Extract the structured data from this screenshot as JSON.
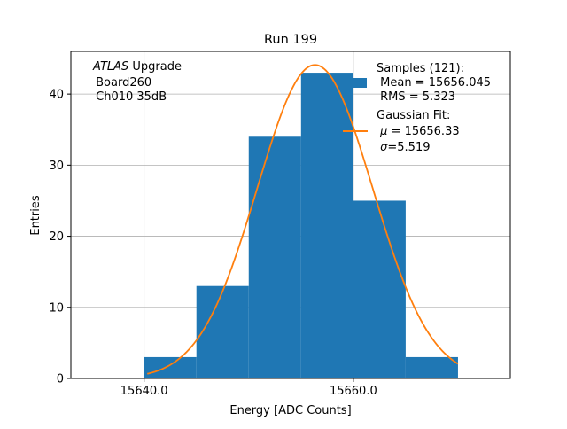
{
  "chart_data": {
    "type": "bar",
    "title": "Run 199",
    "xlabel": "Energy [ADC Counts]",
    "ylabel": "Entries",
    "xlim": [
      15633,
      15675
    ],
    "ylim": [
      0,
      46
    ],
    "grid": true,
    "xticks": [
      15640,
      15660
    ],
    "xtick_labels": [
      "15640.0",
      "15660.0"
    ],
    "yticks": [
      0,
      10,
      20,
      30,
      40
    ],
    "ytick_labels": [
      "0",
      "10",
      "20",
      "30",
      "40"
    ],
    "bin_edges": [
      15640,
      15645,
      15650,
      15655,
      15660,
      15665,
      15670
    ],
    "values": [
      3,
      13,
      34,
      43,
      25,
      3
    ],
    "bar_color": "#1f77b4",
    "fit": {
      "mu": 15656.33,
      "sigma": 5.519,
      "amplitude": 44.1,
      "x_range": [
        15640.3,
        15670
      ],
      "color": "#ff7f0e"
    },
    "annotation": {
      "italic": "ATLAS",
      "rest": " Upgrade",
      "line2": " Board260",
      "line3": " Ch010 35dB"
    },
    "legend": {
      "position": "top-right",
      "hist": {
        "line1": "Samples (121):",
        "line2": " Mean = 15656.045",
        "line3": " RMS = 5.323"
      },
      "fit": {
        "line1": "Gaussian Fit:",
        "mu_symbol": "μ",
        "mu_text": " = 15656.33",
        "sigma_symbol": "σ",
        "sigma_text": "=5.519"
      }
    }
  }
}
